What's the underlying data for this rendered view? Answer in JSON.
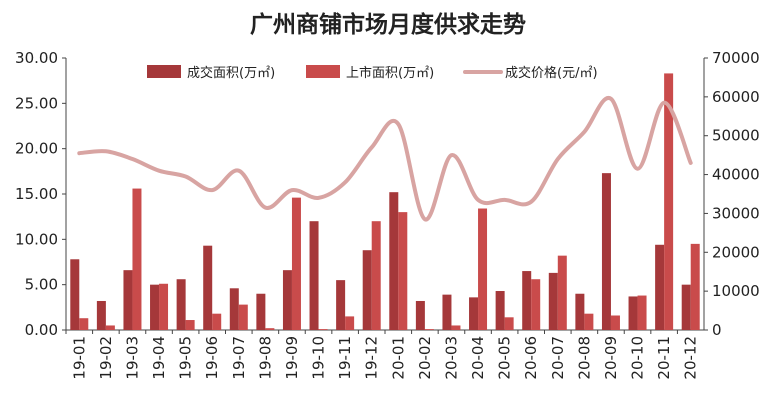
{
  "chart_data": {
    "type": "bar",
    "title": "广州商铺市场月度供求走势",
    "categories": [
      "19-01",
      "19-02",
      "19-03",
      "19-04",
      "19-05",
      "19-06",
      "19-07",
      "19-08",
      "19-09",
      "19-10",
      "19-11",
      "19-12",
      "20-01",
      "20-02",
      "20-03",
      "20-04",
      "20-05",
      "20-06",
      "20-07",
      "20-08",
      "20-09",
      "20-10",
      "20-11",
      "20-12"
    ],
    "series": [
      {
        "name": "成交面积(万㎡)",
        "axis": "left",
        "kind": "bar",
        "color": "#A5383A",
        "values": [
          7.8,
          3.2,
          6.6,
          5.0,
          5.6,
          9.3,
          4.6,
          4.0,
          6.6,
          12.0,
          5.5,
          8.8,
          15.2,
          3.2,
          3.9,
          3.6,
          4.3,
          6.5,
          6.3,
          4.0,
          17.3,
          3.7,
          9.4,
          5.0
        ]
      },
      {
        "name": "上市面积(万㎡)",
        "axis": "left",
        "kind": "bar",
        "color": "#C94B4B",
        "values": [
          1.3,
          0.5,
          15.6,
          5.1,
          1.1,
          1.8,
          2.8,
          0.2,
          14.6,
          0.1,
          1.5,
          12.0,
          13.0,
          0.1,
          0.5,
          13.4,
          1.4,
          5.6,
          8.2,
          1.8,
          1.6,
          3.8,
          28.3,
          9.5
        ]
      },
      {
        "name": "成交价格(元/㎡)",
        "axis": "right",
        "kind": "line",
        "color": "#D8A4A2",
        "values": [
          45500,
          46000,
          44000,
          41000,
          39500,
          36000,
          41000,
          31500,
          36000,
          34000,
          38000,
          47000,
          53000,
          28500,
          45000,
          33500,
          33500,
          33000,
          44000,
          51000,
          59500,
          41500,
          58500,
          43000
        ]
      }
    ],
    "y_left": {
      "ylim": [
        0,
        30
      ],
      "ticks": [
        "0.00",
        "5.00",
        "10.00",
        "15.00",
        "20.00",
        "25.00",
        "30.00"
      ]
    },
    "y_right": {
      "ylim": [
        0,
        70000
      ],
      "ticks": [
        "0",
        "10000",
        "20000",
        "30000",
        "40000",
        "50000",
        "60000",
        "70000"
      ]
    },
    "legend_position": "top",
    "grid": false
  }
}
